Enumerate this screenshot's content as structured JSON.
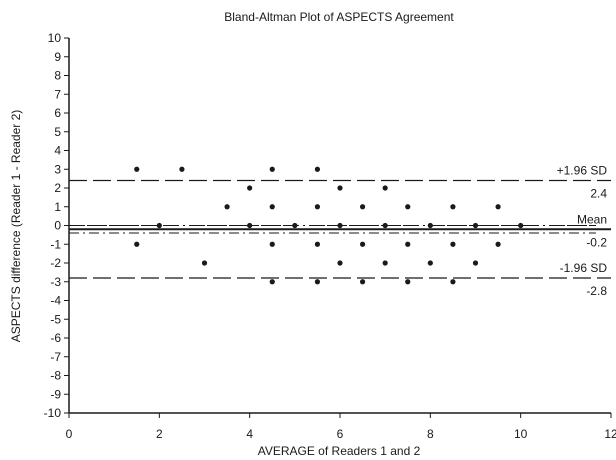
{
  "chart_data": {
    "type": "scatter",
    "title": "Bland-Altman Plot of ASPECTS Agreement",
    "xlabel": "AVERAGE of Readers 1 and 2",
    "ylabel": "ASPECTS difference (Reader 1 - Reader 2)",
    "xlim": [
      0,
      12
    ],
    "ylim": [
      -10,
      10
    ],
    "xticks": [
      0,
      2,
      4,
      6,
      8,
      10,
      12
    ],
    "yticks": [
      -10,
      -9,
      -8,
      -7,
      -6,
      -5,
      -4,
      -3,
      -2,
      -1,
      0,
      1,
      2,
      3,
      4,
      5,
      6,
      7,
      8,
      9,
      10
    ],
    "grid": false,
    "points": [
      {
        "x": 1.5,
        "y": 3
      },
      {
        "x": 2.5,
        "y": 3
      },
      {
        "x": 4.5,
        "y": 3
      },
      {
        "x": 5.5,
        "y": 3
      },
      {
        "x": 4,
        "y": 2
      },
      {
        "x": 6,
        "y": 2
      },
      {
        "x": 7,
        "y": 2
      },
      {
        "x": 3.5,
        "y": 1
      },
      {
        "x": 4.5,
        "y": 1
      },
      {
        "x": 5.5,
        "y": 1
      },
      {
        "x": 6.5,
        "y": 1
      },
      {
        "x": 7.5,
        "y": 1
      },
      {
        "x": 8.5,
        "y": 1
      },
      {
        "x": 9.5,
        "y": 1
      },
      {
        "x": 2,
        "y": 0
      },
      {
        "x": 4,
        "y": 0
      },
      {
        "x": 5,
        "y": 0
      },
      {
        "x": 6,
        "y": 0
      },
      {
        "x": 7,
        "y": 0
      },
      {
        "x": 8,
        "y": 0
      },
      {
        "x": 9,
        "y": 0
      },
      {
        "x": 10,
        "y": 0
      },
      {
        "x": 1.5,
        "y": -1
      },
      {
        "x": 4.5,
        "y": -1
      },
      {
        "x": 5.5,
        "y": -1
      },
      {
        "x": 6.5,
        "y": -1
      },
      {
        "x": 7.5,
        "y": -1
      },
      {
        "x": 8.5,
        "y": -1
      },
      {
        "x": 9.5,
        "y": -1
      },
      {
        "x": 3,
        "y": -2
      },
      {
        "x": 6,
        "y": -2
      },
      {
        "x": 7,
        "y": -2
      },
      {
        "x": 8,
        "y": -2
      },
      {
        "x": 9,
        "y": -2
      },
      {
        "x": 4.5,
        "y": -3
      },
      {
        "x": 5.5,
        "y": -3
      },
      {
        "x": 6.5,
        "y": -3
      },
      {
        "x": 7.5,
        "y": -3
      },
      {
        "x": 8.5,
        "y": -3
      }
    ],
    "reference_lines": {
      "zero": {
        "value": 0,
        "style": "dash-dot"
      },
      "mean": {
        "label": "Mean",
        "value": -0.2,
        "value_label": "-0.2",
        "style": "solid"
      },
      "upper": {
        "label": "+1.96 SD",
        "value": 2.4,
        "value_label": "2.4",
        "style": "dashed"
      },
      "lower": {
        "label": "-1.96 SD",
        "value": -2.8,
        "value_label": "-2.8",
        "style": "dashed"
      },
      "mean_ci": {
        "lower": -0.4,
        "upper": 0.0,
        "style": "dash-dot"
      }
    },
    "colors": {
      "ink": "#1a1a1a",
      "background": "#ffffff"
    }
  }
}
